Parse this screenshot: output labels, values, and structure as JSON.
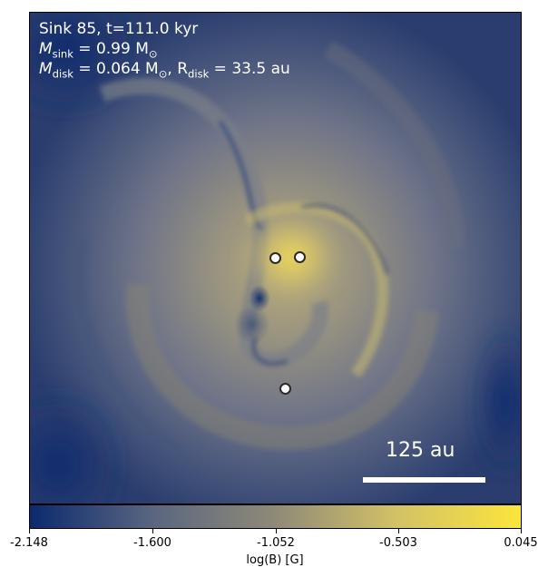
{
  "title": {
    "line1": "Sink 85, t=111.0 kyr",
    "line2_sym": "M",
    "line2_sub": "sink",
    "line2_val": " = 0.99 M",
    "line2_unit_sub": "⊙",
    "line3_sym": "M",
    "line3_sub": "disk",
    "line3_val": " = 0.064 M",
    "line3_unit_sub": "⊙",
    "line3_r": ", R",
    "line3_rsub": "disk",
    "line3_rval": " = 33.5 au"
  },
  "scale_bar": {
    "label": "125 au"
  },
  "sinks": [
    {
      "name": "sink-1"
    },
    {
      "name": "sink-2"
    },
    {
      "name": "sink-3"
    }
  ],
  "colorbar": {
    "label": "log(B) [G]",
    "min": -2.148,
    "max": 0.045,
    "ticks": [
      "-2.148",
      "-1.600",
      "-1.052",
      "-0.503",
      "0.045"
    ],
    "colors": [
      "#0b2a6e",
      "#5a6680",
      "#8f8a78",
      "#d3c266",
      "#fbe53c"
    ]
  }
}
